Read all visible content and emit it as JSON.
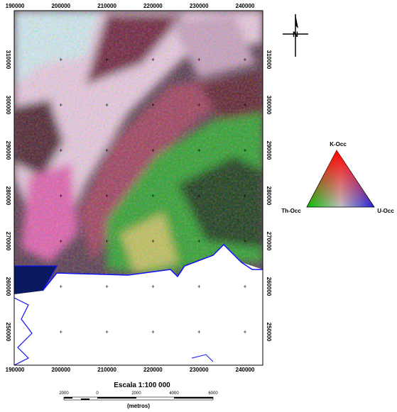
{
  "map": {
    "x_ticks": [
      190000,
      200000,
      210000,
      220000,
      230000,
      240000
    ],
    "y_ticks": [
      310000,
      300000,
      290000,
      280000,
      270000,
      260000,
      250000
    ],
    "north": "N",
    "legend": {
      "top": "K-Occ",
      "left": "Th-Occ",
      "right": "U-Occ"
    },
    "scale": {
      "title": "Escala 1:100 000",
      "labels": [
        2000,
        0,
        2000,
        4000,
        6000
      ],
      "unit": "(metros)"
    }
  }
}
